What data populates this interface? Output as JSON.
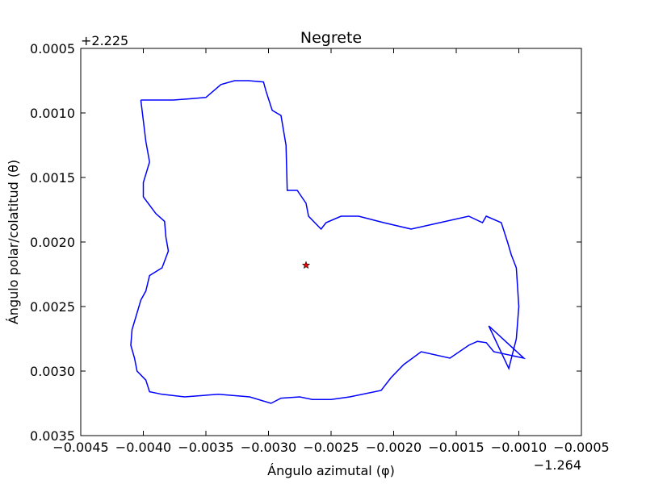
{
  "chart_data": {
    "type": "line",
    "title": "Negrete",
    "xlabel": "Ángulo azimutal (φ)",
    "ylabel": "Ángulo polar/colatitud (θ)",
    "x_offset_label": "−1.264",
    "y_offset_label": "+2.225",
    "xlim": [
      -0.0045,
      -0.0005
    ],
    "ylim": [
      0.0035,
      0.0005
    ],
    "y_inverted": true,
    "grid": false,
    "x_ticks": [
      -0.0045,
      -0.004,
      -0.0035,
      -0.003,
      -0.0025,
      -0.002,
      -0.0015,
      -0.001,
      -0.0005
    ],
    "x_tick_labels": [
      "−0.0045",
      "−0.0040",
      "−0.0035",
      "−0.0030",
      "−0.0025",
      "−0.0020",
      "−0.0015",
      "−0.0010",
      "−0.0005"
    ],
    "y_ticks": [
      0.0005,
      0.001,
      0.0015,
      0.002,
      0.0025,
      0.003,
      0.0035
    ],
    "y_tick_labels": [
      "0.0005",
      "0.0010",
      "0.0015",
      "0.0020",
      "0.0025",
      "0.0030",
      "0.0035"
    ],
    "series": [
      {
        "color": "#0000ff",
        "x": [
          -0.00402,
          -0.00376,
          -0.00362,
          -0.0035,
          -0.00338,
          -0.00327,
          -0.00316,
          -0.00304,
          -0.00302,
          -0.00297,
          -0.0029,
          -0.00286,
          -0.00285,
          -0.00277,
          -0.0027,
          -0.00268,
          -0.00258,
          -0.00254,
          -0.00242,
          -0.00228,
          -0.00208,
          -0.00186,
          -0.00163,
          -0.0014,
          -0.00129,
          -0.00126,
          -0.00114,
          -0.00109,
          -0.00106,
          -0.00102,
          -0.001,
          -0.00102,
          -0.00108,
          -0.00124,
          -0.00096,
          -0.0012,
          -0.00126,
          -0.00133,
          -0.0014,
          -0.00155,
          -0.00178,
          -0.00192,
          -0.00202,
          -0.0021,
          -0.00235,
          -0.0025,
          -0.00265,
          -0.00275,
          -0.0029,
          -0.00298,
          -0.00315,
          -0.0034,
          -0.00367,
          -0.00385,
          -0.00395,
          -0.00398,
          -0.00405,
          -0.00407,
          -0.0041,
          -0.00409,
          -0.00405,
          -0.00402,
          -0.00398,
          -0.00395,
          -0.00385,
          -0.0038,
          -0.00382,
          -0.00383,
          -0.0039,
          -0.004,
          -0.004,
          -0.00395,
          -0.00398,
          -0.00402
        ],
        "y": [
          0.0009,
          0.0009,
          0.00089,
          0.00088,
          0.00078,
          0.00075,
          0.00075,
          0.00076,
          0.00083,
          0.00098,
          0.00102,
          0.00125,
          0.0016,
          0.0016,
          0.0017,
          0.0018,
          0.0019,
          0.00185,
          0.0018,
          0.0018,
          0.00185,
          0.0019,
          0.00185,
          0.0018,
          0.00185,
          0.0018,
          0.00185,
          0.002,
          0.0021,
          0.0022,
          0.0025,
          0.00275,
          0.00298,
          0.00265,
          0.0029,
          0.00285,
          0.00278,
          0.00277,
          0.0028,
          0.0029,
          0.00285,
          0.00295,
          0.00305,
          0.00315,
          0.0032,
          0.00322,
          0.00322,
          0.0032,
          0.00321,
          0.00325,
          0.0032,
          0.00318,
          0.0032,
          0.00318,
          0.00316,
          0.00307,
          0.003,
          0.0029,
          0.0028,
          0.00268,
          0.00255,
          0.00245,
          0.00238,
          0.00226,
          0.0022,
          0.00207,
          0.00196,
          0.00184,
          0.00178,
          0.00165,
          0.00154,
          0.00138,
          0.00122,
          0.0009
        ]
      },
      {
        "type": "scatter",
        "marker": "star",
        "color": "#ff0000",
        "x": [
          -0.0027
        ],
        "y": [
          0.00218
        ]
      }
    ]
  }
}
